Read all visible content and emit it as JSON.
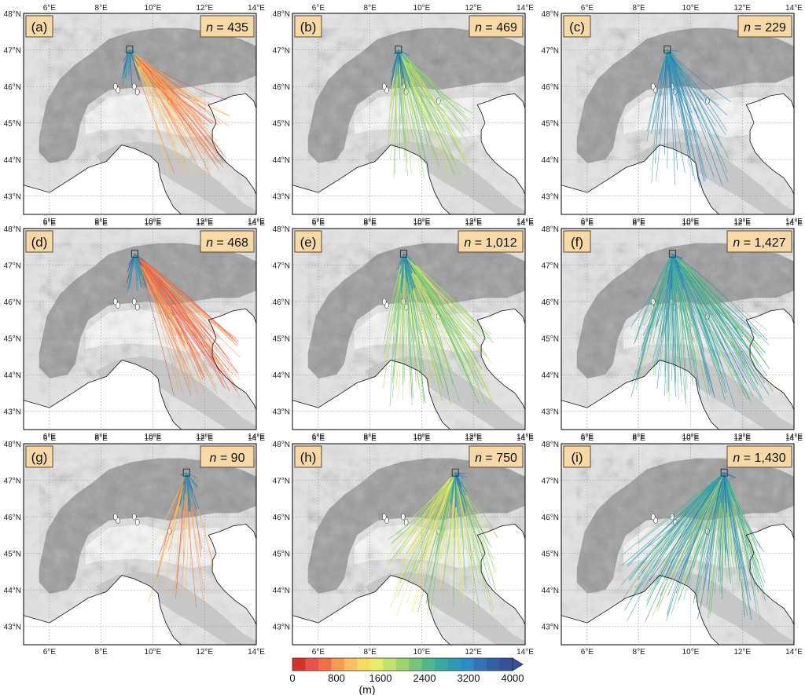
{
  "figure": {
    "lon_ticks": [
      "6°E",
      "8°E",
      "10°E",
      "12°E",
      "14°E"
    ],
    "lat_ticks": [
      "48°N",
      "47°N",
      "46°N",
      "45°N",
      "44°N",
      "43°N"
    ],
    "lon_range": [
      5,
      14
    ],
    "lat_range": [
      42.5,
      48
    ],
    "colors": {
      "label_box": "#f7d9a8",
      "label_box_border": "#5a4a33",
      "gridline": "#9a9a9a",
      "coast": "#111111",
      "origin_box": "#333333"
    }
  },
  "panels": [
    {
      "label": "(a)",
      "count_prefix": "n",
      "count_text": " = 435",
      "origin": [
        9.1,
        47.0
      ],
      "row": 0
    },
    {
      "label": "(b)",
      "count_prefix": "n",
      "count_text": " = 469",
      "origin": [
        9.1,
        47.0
      ],
      "row": 0
    },
    {
      "label": "(c)",
      "count_prefix": "n",
      "count_text": " = 229",
      "origin": [
        9.1,
        47.0
      ],
      "row": 0
    },
    {
      "label": "(d)",
      "count_prefix": "n",
      "count_text": " = 468",
      "origin": [
        9.3,
        47.3
      ],
      "row": 1
    },
    {
      "label": "(e)",
      "count_prefix": "n",
      "count_text": " = 1,012",
      "origin": [
        9.3,
        47.3
      ],
      "row": 1
    },
    {
      "label": "(f)",
      "count_prefix": "n",
      "count_text": " = 1,427",
      "origin": [
        9.3,
        47.3
      ],
      "row": 1
    },
    {
      "label": "(g)",
      "count_prefix": "n",
      "count_text": " = 90",
      "origin": [
        11.3,
        47.2
      ],
      "row": 2
    },
    {
      "label": "(h)",
      "count_prefix": "n",
      "count_text": " = 750",
      "origin": [
        11.3,
        47.2
      ],
      "row": 2
    },
    {
      "label": "(i)",
      "count_prefix": "n",
      "count_text": " = 1,430",
      "origin": [
        11.3,
        47.2
      ],
      "row": 2
    }
  ],
  "colorbar": {
    "ticks": [
      "0",
      "800",
      "1600",
      "2400",
      "3200",
      "4000"
    ],
    "unit": "(m)",
    "min": 0,
    "max": 4000,
    "colors": [
      "#d73027",
      "#e8524a",
      "#f46d43",
      "#f89a52",
      "#fdbf5f",
      "#f6dc5e",
      "#e6ec6a",
      "#c5e26c",
      "#9fd36c",
      "#74c47a",
      "#4fb88a",
      "#36aa9e",
      "#2a9bb7",
      "#2b8cc4",
      "#2f74b9",
      "#3260a6",
      "#35519a"
    ]
  }
}
